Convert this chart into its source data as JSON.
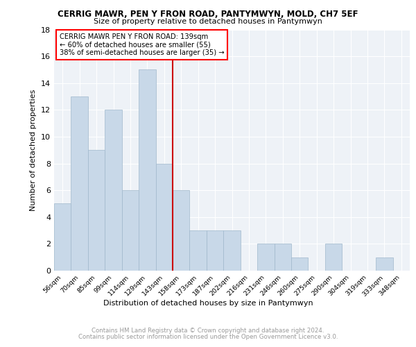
{
  "title": "CERRIG MAWR, PEN Y FRON ROAD, PANTYMWYN, MOLD, CH7 5EF",
  "subtitle": "Size of property relative to detached houses in Pantymwyn",
  "xlabel": "Distribution of detached houses by size in Pantymwyn",
  "ylabel": "Number of detached properties",
  "categories": [
    "56sqm",
    "70sqm",
    "85sqm",
    "99sqm",
    "114sqm",
    "129sqm",
    "143sqm",
    "158sqm",
    "173sqm",
    "187sqm",
    "202sqm",
    "216sqm",
    "231sqm",
    "246sqm",
    "260sqm",
    "275sqm",
    "290sqm",
    "304sqm",
    "319sqm",
    "333sqm",
    "348sqm"
  ],
  "values": [
    5,
    13,
    9,
    12,
    6,
    15,
    8,
    6,
    3,
    3,
    3,
    0,
    2,
    2,
    1,
    0,
    2,
    0,
    0,
    1,
    0
  ],
  "bar_color": "#c8d8e8",
  "bar_edge_color": "#a0b8cc",
  "vline_index": 6,
  "vline_color": "#cc0000",
  "annotation_title": "CERRIG MAWR PEN Y FRON ROAD: 139sqm",
  "annotation_line1": "← 60% of detached houses are smaller (55)",
  "annotation_line2": "38% of semi-detached houses are larger (35) →",
  "ylim": [
    0,
    18
  ],
  "yticks": [
    0,
    2,
    4,
    6,
    8,
    10,
    12,
    14,
    16,
    18
  ],
  "footer1": "Contains HM Land Registry data © Crown copyright and database right 2024.",
  "footer2": "Contains public sector information licensed under the Open Government Licence v3.0.",
  "bg_color": "#eef2f7"
}
